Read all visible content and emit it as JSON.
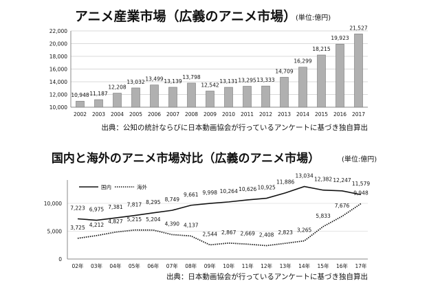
{
  "chart_data": [
    {
      "type": "bar",
      "title": "アニメ産業市場（広義のアニメ市場）",
      "unit": "(単位:億円)",
      "categories": [
        "2002",
        "2003",
        "2004",
        "2005",
        "2006",
        "2007",
        "2008",
        "2009",
        "2010",
        "2011",
        "2012",
        "2013",
        "2014",
        "2015",
        "2016",
        "2017"
      ],
      "values": [
        10948,
        11187,
        12208,
        13032,
        13499,
        13139,
        13798,
        12542,
        13131,
        13295,
        13333,
        14709,
        16299,
        18215,
        19923,
        21527
      ],
      "labels": [
        "10,948",
        "11,187",
        "12,208",
        "13,032",
        "13,499",
        "13,139",
        "13,798",
        "12,542",
        "13,131",
        "13,295",
        "13,333",
        "14,709",
        "16,299",
        "18,215",
        "19,923",
        "21,527"
      ],
      "yticks": [
        "10,000",
        "12,000",
        "14,000",
        "16,000",
        "18,000",
        "20,000",
        "22,000"
      ],
      "ylim": [
        10000,
        22000
      ],
      "grid": true,
      "bar_color": "#b0b0b0",
      "source": "出典：公知の統計ならびに日本動画協会が行っているアンケートに基づき独自算出"
    },
    {
      "type": "line",
      "title": "国内と海外のアニメ市場対比（広義のアニメ市場）",
      "unit": "(単位:億円)",
      "categories": [
        "02年",
        "03年",
        "04年",
        "05年",
        "06年",
        "07年",
        "08年",
        "09年",
        "10年",
        "11年",
        "12年",
        "13年",
        "14年",
        "15年",
        "16年",
        "17年"
      ],
      "series": [
        {
          "name": "国内",
          "style": "solid",
          "values": [
            7223,
            6975,
            7381,
            7817,
            8295,
            8749,
            9661,
            9998,
            10264,
            10626,
            10925,
            11886,
            13034,
            12382,
            12247,
            11579
          ],
          "labels": [
            "7,223",
            "6,975",
            "7,381",
            "7,817",
            "8,295",
            "8,749",
            "9,661",
            "9,998",
            "10,264",
            "10,626",
            "10,925",
            "11,886",
            "13,034",
            "12,382",
            "12,247",
            "11,579"
          ]
        },
        {
          "name": "海外",
          "style": "dotted",
          "values": [
            3725,
            4212,
            4827,
            5215,
            5204,
            4390,
            4137,
            2544,
            2867,
            2669,
            2408,
            2823,
            3265,
            5833,
            7676,
            9948
          ],
          "labels": [
            "3,725",
            "4,212",
            "4,827",
            "5,215",
            "5,204",
            "4,390",
            "4,137",
            "2,544",
            "2,867",
            "2,669",
            "2,408",
            "2,823",
            "3,265",
            "5,833",
            "7,676",
            "9,948"
          ]
        }
      ],
      "yticks": [
        "0",
        "5,000",
        "10,000"
      ],
      "ylim": [
        0,
        14200
      ],
      "grid": true,
      "legend": "top-left",
      "source": "出典：日本動画協会が行っているアンケートに基づき独自算出"
    }
  ]
}
